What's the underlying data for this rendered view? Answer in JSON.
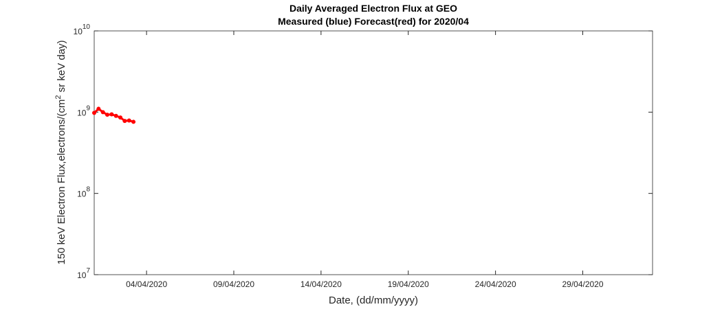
{
  "chart_data": {
    "type": "line",
    "title": "Daily Averaged Electron Flux at GEO",
    "subtitle": "Measured (blue) Forecast(red) for 2020/04",
    "x_label": "Date, (dd/mm/yyyy)",
    "y_label": [
      "150 keV Electron Flux,electrons/(cm",
      "2",
      " sr keV day)"
    ],
    "log_y": true,
    "color": "#ff0000",
    "x": [
      "2020-04-01T00:00",
      "2020-04-01T06:00",
      "2020-04-01T12:00",
      "2020-04-01T18:00",
      "2020-04-02T00:00",
      "2020-04-02T06:00",
      "2020-04-02T12:00",
      "2020-04-02T18:00",
      "2020-04-03T00:00",
      "2020-04-03T06:00"
    ],
    "values": [
      980000000,
      1100000000,
      1000000000,
      930000000,
      940000000,
      900000000,
      860000000,
      780000000,
      790000000,
      760000000
    ],
    "xlim": [
      "2020-04-01",
      "2020-05-03"
    ],
    "xticks": [
      {
        "value": "2020-04-04",
        "label": "04/04/2020"
      },
      {
        "value": "2020-04-09",
        "label": "09/04/2020"
      },
      {
        "value": "2020-04-14",
        "label": "14/04/2020"
      },
      {
        "value": "2020-04-19",
        "label": "19/04/2020"
      },
      {
        "value": "2020-04-24",
        "label": "24/04/2020"
      },
      {
        "value": "2020-04-29",
        "label": "29/04/2020"
      }
    ],
    "ylim": [
      10000000,
      10000000000
    ],
    "yticks": [
      {
        "value": 10000000,
        "label": "10",
        "exponent": "7"
      },
      {
        "value": 100000000,
        "label": "10",
        "exponent": "8"
      },
      {
        "value": 1000000000,
        "label": "10",
        "exponent": "9"
      },
      {
        "value": 10000000000,
        "label": "10",
        "exponent": "10"
      }
    ]
  }
}
